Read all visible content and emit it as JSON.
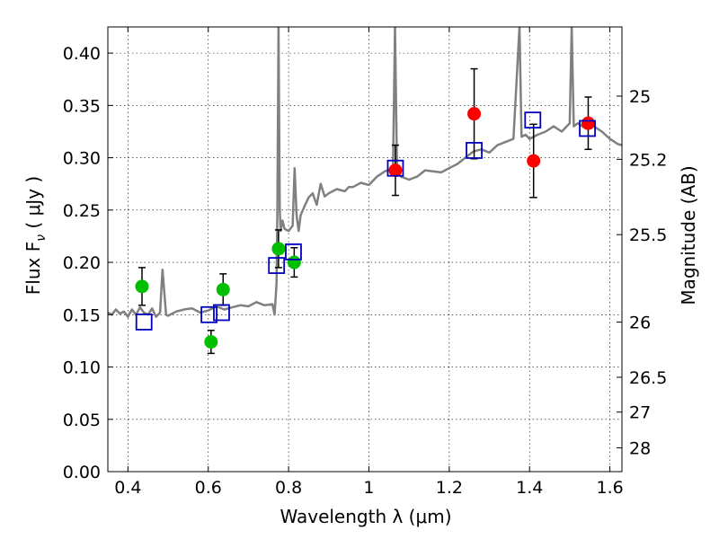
{
  "chart_data": {
    "type": "scatter",
    "title": "",
    "xlabel": "Wavelength  λ (μm)",
    "ylabel": "Flux  F",
    "ylabel_sub": "ν",
    "ylabel_unit": " ( μJy )",
    "y2label": "Magnitude (AB)",
    "xlim": [
      0.35,
      1.63
    ],
    "ylim": [
      0.0,
      0.425
    ],
    "grid": true,
    "x_ticks": [
      0.4,
      0.6,
      0.8,
      1.0,
      1.2,
      1.4,
      1.6
    ],
    "x_tick_labels": [
      "0.4",
      "0.6",
      "0.8",
      "1",
      "1.2",
      "1.4",
      "1.6"
    ],
    "y_ticks": [
      0.0,
      0.05,
      0.1,
      0.15,
      0.2,
      0.25,
      0.3,
      0.35,
      0.4
    ],
    "y_tick_labels": [
      "0.00",
      "0.05",
      "0.10",
      "0.15",
      "0.20",
      "0.25",
      "0.30",
      "0.35",
      "0.40"
    ],
    "y2_ticks": [
      {
        "mag": "25",
        "flux": 0.3589
      },
      {
        "mag": "25.2",
        "flux": 0.2985
      },
      {
        "mag": "25.5",
        "flux": 0.2265
      },
      {
        "mag": "26",
        "flux": 0.1429
      },
      {
        "mag": "26.5",
        "flux": 0.0902
      },
      {
        "mag": "27",
        "flux": 0.0569
      },
      {
        "mag": "28",
        "flux": 0.0227
      }
    ],
    "series": [
      {
        "name": "model spectrum",
        "kind": "line",
        "color": "#808080",
        "x": [
          0.35,
          0.36,
          0.37,
          0.38,
          0.39,
          0.4,
          0.41,
          0.42,
          0.43,
          0.44,
          0.45,
          0.46,
          0.47,
          0.48,
          0.486,
          0.495,
          0.5,
          0.52,
          0.54,
          0.56,
          0.58,
          0.6,
          0.62,
          0.64,
          0.66,
          0.68,
          0.7,
          0.72,
          0.74,
          0.76,
          0.765,
          0.77,
          0.772,
          0.775,
          0.778,
          0.78,
          0.785,
          0.79,
          0.8,
          0.81,
          0.815,
          0.82,
          0.825,
          0.83,
          0.84,
          0.85,
          0.86,
          0.87,
          0.88,
          0.89,
          0.9,
          0.92,
          0.94,
          0.95,
          0.96,
          0.98,
          1.0,
          1.02,
          1.04,
          1.06,
          1.065,
          1.07,
          1.08,
          1.1,
          1.12,
          1.14,
          1.16,
          1.18,
          1.2,
          1.22,
          1.24,
          1.25,
          1.26,
          1.28,
          1.3,
          1.32,
          1.34,
          1.36,
          1.375,
          1.38,
          1.39,
          1.4,
          1.41,
          1.42,
          1.44,
          1.46,
          1.48,
          1.5,
          1.505,
          1.51,
          1.52,
          1.54,
          1.56,
          1.58,
          1.6,
          1.62,
          1.63
        ],
        "y": [
          0.152,
          0.15,
          0.155,
          0.151,
          0.153,
          0.148,
          0.155,
          0.15,
          0.157,
          0.152,
          0.15,
          0.156,
          0.148,
          0.152,
          0.193,
          0.15,
          0.149,
          0.153,
          0.155,
          0.156,
          0.152,
          0.154,
          0.158,
          0.155,
          0.157,
          0.159,
          0.158,
          0.162,
          0.159,
          0.16,
          0.15,
          0.18,
          0.25,
          0.425,
          0.25,
          0.23,
          0.24,
          0.232,
          0.23,
          0.235,
          0.29,
          0.245,
          0.23,
          0.245,
          0.254,
          0.262,
          0.266,
          0.255,
          0.275,
          0.263,
          0.266,
          0.27,
          0.268,
          0.272,
          0.272,
          0.276,
          0.274,
          0.282,
          0.287,
          0.29,
          0.425,
          0.285,
          0.282,
          0.279,
          0.282,
          0.288,
          0.287,
          0.286,
          0.29,
          0.294,
          0.3,
          0.303,
          0.306,
          0.308,
          0.305,
          0.312,
          0.315,
          0.318,
          0.425,
          0.32,
          0.322,
          0.318,
          0.32,
          0.322,
          0.325,
          0.33,
          0.325,
          0.333,
          0.425,
          0.33,
          0.333,
          0.328,
          0.33,
          0.325,
          0.318,
          0.313,
          0.312
        ]
      },
      {
        "name": "green photometry",
        "kind": "points",
        "color": "#00bf00",
        "points": [
          {
            "x": 0.435,
            "y": 0.177,
            "err": 0.018
          },
          {
            "x": 0.607,
            "y": 0.124,
            "err": 0.011
          },
          {
            "x": 0.637,
            "y": 0.174,
            "err": 0.015
          },
          {
            "x": 0.775,
            "y": 0.213,
            "err": 0.018
          },
          {
            "x": 0.814,
            "y": 0.2,
            "err": 0.014
          }
        ]
      },
      {
        "name": "red photometry",
        "kind": "points",
        "color": "#ff0000",
        "points": [
          {
            "x": 1.066,
            "y": 0.288,
            "err": 0.024
          },
          {
            "x": 1.262,
            "y": 0.342,
            "err": 0.043
          },
          {
            "x": 1.41,
            "y": 0.297,
            "err": 0.035
          },
          {
            "x": 1.546,
            "y": 0.333,
            "err": 0.025
          }
        ]
      },
      {
        "name": "model synthetic photometry",
        "kind": "open-squares",
        "color": "#0000bf",
        "points": [
          {
            "x": 0.44,
            "y": 0.143
          },
          {
            "x": 0.602,
            "y": 0.15
          },
          {
            "x": 0.633,
            "y": 0.152
          },
          {
            "x": 0.77,
            "y": 0.197
          },
          {
            "x": 0.812,
            "y": 0.21
          },
          {
            "x": 1.066,
            "y": 0.29
          },
          {
            "x": 1.262,
            "y": 0.307
          },
          {
            "x": 1.408,
            "y": 0.336
          },
          {
            "x": 1.544,
            "y": 0.328
          }
        ]
      }
    ]
  }
}
